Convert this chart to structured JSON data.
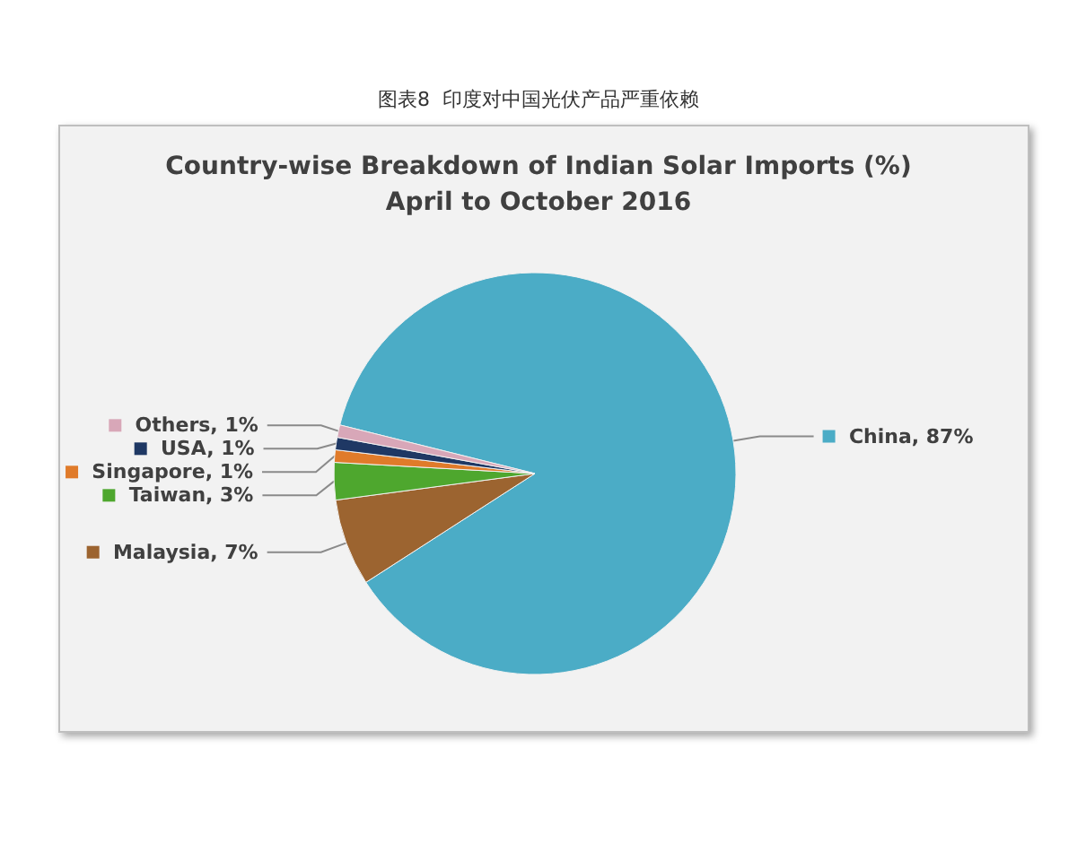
{
  "chart_data": {
    "type": "pie",
    "title": "图表8  印度对中国光伏产品严重依赖",
    "subtitle": "Country-wise Breakdown of Indian Solar Imports (%)\nApril to October 2016",
    "categories": [
      "China",
      "Malaysia",
      "Taiwan",
      "Singapore",
      "USA",
      "Others"
    ],
    "values": [
      87,
      7,
      3,
      1,
      1,
      1
    ],
    "value_labels": [
      "87%",
      "7%",
      "3%",
      "1%",
      "1%",
      "1%"
    ],
    "colors": [
      "#4bacc6",
      "#9c6430",
      "#4ea72e",
      "#e07b2a",
      "#1f3864",
      "#d8a7b8"
    ],
    "legend": "left"
  }
}
